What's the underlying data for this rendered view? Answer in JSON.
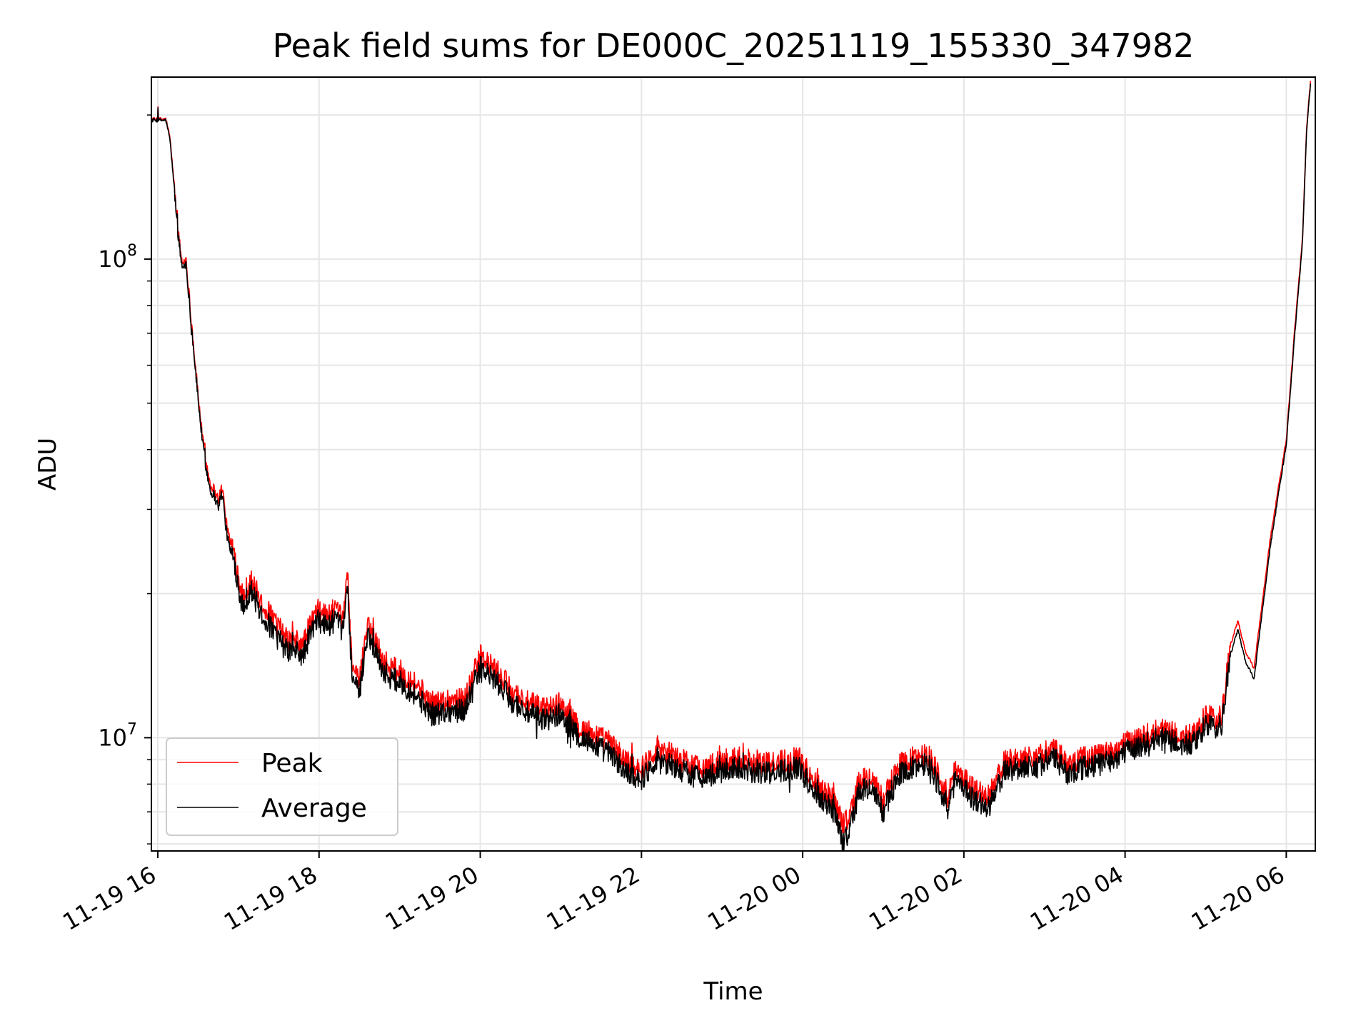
{
  "chart_data": {
    "type": "line",
    "title": "Peak field sums for DE000C_20251119_155330_347982",
    "xlabel": "Time",
    "ylabel": "ADU",
    "yscale": "log",
    "ylim": [
      5800000,
      240000000
    ],
    "xlim_hours": [
      -0.08,
      14.36
    ],
    "grid": true,
    "legend_location": "lower-left",
    "x_tick_labels": [
      "11-19 16",
      "11-19 18",
      "11-19 20",
      "11-19 22",
      "11-20 00",
      "11-20 02",
      "11-20 04",
      "11-20 06"
    ],
    "x_tick_hours": [
      0,
      2,
      4,
      6,
      8,
      10,
      12,
      14
    ],
    "y_tick_major": [
      {
        "value": 10000000,
        "base": "10",
        "exp": "7"
      },
      {
        "value": 100000000,
        "base": "10",
        "exp": "8"
      }
    ],
    "x_unit_note": "hours since 2025-11-19 16:00",
    "series": [
      {
        "name": "Peak",
        "color": "#ff0000",
        "x": [
          -0.1,
          0.03,
          0.1,
          0.15,
          0.2,
          0.25,
          0.3,
          0.35,
          0.4,
          0.45,
          0.5,
          0.55,
          0.6,
          0.65,
          0.7,
          0.75,
          0.8,
          0.85,
          0.9,
          0.95,
          1.0,
          1.05,
          1.1,
          1.15,
          1.2,
          1.3,
          1.4,
          1.5,
          1.6,
          1.7,
          1.8,
          1.9,
          2.0,
          2.1,
          2.2,
          2.3,
          2.35,
          2.4,
          2.45,
          2.5,
          2.6,
          2.7,
          2.8,
          2.9,
          3.0,
          3.2,
          3.4,
          3.6,
          3.8,
          4.0,
          4.2,
          4.4,
          4.6,
          4.8,
          5.0,
          5.2,
          5.4,
          5.6,
          5.8,
          6.0,
          6.2,
          6.4,
          6.6,
          6.8,
          7.0,
          7.2,
          7.4,
          7.6,
          7.8,
          7.95,
          8.1,
          8.3,
          8.42,
          8.5,
          8.6,
          8.7,
          8.85,
          9.0,
          9.2,
          9.4,
          9.55,
          9.7,
          9.8,
          9.9,
          10.1,
          10.3,
          10.5,
          10.7,
          10.9,
          11.1,
          11.3,
          11.5,
          11.7,
          11.9,
          12.1,
          12.3,
          12.5,
          12.7,
          12.9,
          13.0,
          13.1,
          13.2,
          13.3,
          13.4,
          13.5,
          13.6,
          13.7,
          13.8,
          13.9,
          14.0,
          14.1,
          14.2,
          14.25,
          14.3
        ],
        "values": [
          196000000,
          196000000,
          196000000,
          180000000,
          145000000,
          115000000,
          98000000,
          100000000,
          80000000,
          64000000,
          52000000,
          43000000,
          37500000,
          34000000,
          33000000,
          31500000,
          33500000,
          28000000,
          25500000,
          24000000,
          22000000,
          19500000,
          20500000,
          21500000,
          20500000,
          19000000,
          18000000,
          17000000,
          16000000,
          16000000,
          15600000,
          17500000,
          18500000,
          18000000,
          18500000,
          17500000,
          23000000,
          15000000,
          13500000,
          13000000,
          17500000,
          16000000,
          14500000,
          14000000,
          13800000,
          13000000,
          11800000,
          12000000,
          12000000,
          14800000,
          13800000,
          12500000,
          11800000,
          11500000,
          11800000,
          10600000,
          10200000,
          9800000,
          9000000,
          8600000,
          9600000,
          9200000,
          8800000,
          8700000,
          8900000,
          9100000,
          8900000,
          8800000,
          9000000,
          9100000,
          8300000,
          7700000,
          7300000,
          6600000,
          7000000,
          8100000,
          8300000,
          7400000,
          8800000,
          9100000,
          9300000,
          8300000,
          7400000,
          8700000,
          7900000,
          7500000,
          8900000,
          9100000,
          9100000,
          9500000,
          8800000,
          9100000,
          9200000,
          9500000,
          9900000,
          10200000,
          10400000,
          10000000,
          10200000,
          11200000,
          11000000,
          11000000,
          15500000,
          17500000,
          15000000,
          14000000,
          19000000,
          26000000,
          33000000,
          42000000,
          70000000,
          110000000,
          185000000,
          235000000
        ]
      },
      {
        "name": "Average",
        "color": "#000000",
        "x": [
          -0.1,
          0.03,
          0.1,
          0.15,
          0.2,
          0.25,
          0.3,
          0.35,
          0.4,
          0.45,
          0.5,
          0.55,
          0.6,
          0.65,
          0.7,
          0.75,
          0.8,
          0.85,
          0.9,
          0.95,
          1.0,
          1.05,
          1.1,
          1.15,
          1.2,
          1.3,
          1.4,
          1.5,
          1.6,
          1.7,
          1.8,
          1.9,
          2.0,
          2.1,
          2.2,
          2.3,
          2.35,
          2.4,
          2.45,
          2.5,
          2.6,
          2.7,
          2.8,
          2.9,
          3.0,
          3.2,
          3.4,
          3.6,
          3.8,
          4.0,
          4.2,
          4.4,
          4.6,
          4.8,
          5.0,
          5.2,
          5.4,
          5.6,
          5.8,
          6.0,
          6.2,
          6.4,
          6.6,
          6.8,
          7.0,
          7.2,
          7.4,
          7.6,
          7.8,
          7.95,
          8.1,
          8.3,
          8.42,
          8.5,
          8.6,
          8.7,
          8.85,
          9.0,
          9.2,
          9.4,
          9.55,
          9.7,
          9.8,
          9.9,
          10.1,
          10.3,
          10.5,
          10.7,
          10.9,
          11.1,
          11.3,
          11.5,
          11.7,
          11.9,
          12.1,
          12.3,
          12.5,
          12.7,
          12.9,
          13.0,
          13.1,
          13.2,
          13.3,
          13.4,
          13.5,
          13.6,
          13.7,
          13.8,
          13.9,
          14.0,
          14.1,
          14.2,
          14.25,
          14.3
        ],
        "values": [
          195000000,
          195000000,
          195000000,
          178000000,
          143000000,
          113000000,
          96000000,
          98000000,
          78000000,
          63000000,
          51000000,
          42000000,
          36500000,
          33000000,
          32000000,
          30500000,
          32500000,
          27000000,
          24500000,
          23000000,
          21000000,
          18500000,
          19500000,
          20500000,
          19500000,
          18000000,
          17000000,
          16000000,
          15200000,
          15200000,
          14800000,
          16700000,
          17600000,
          17100000,
          17600000,
          16700000,
          21500000,
          14200000,
          12800000,
          12300000,
          16600000,
          15200000,
          13800000,
          13300000,
          13100000,
          12300000,
          11200000,
          11400000,
          11400000,
          14000000,
          13100000,
          11900000,
          11200000,
          10900000,
          11200000,
          10100000,
          9700000,
          9300000,
          8500000,
          8200000,
          9100000,
          8700000,
          8400000,
          8300000,
          8500000,
          8700000,
          8500000,
          8400000,
          8600000,
          8700000,
          7900000,
          7300000,
          6900000,
          6000000,
          6600000,
          7700000,
          7900000,
          7000000,
          8400000,
          8700000,
          8900000,
          7900000,
          7000000,
          8300000,
          7500000,
          7100000,
          8500000,
          8700000,
          8700000,
          9100000,
          8400000,
          8700000,
          8800000,
          9100000,
          9500000,
          9800000,
          10000000,
          9600000,
          9800000,
          10700000,
          10500000,
          10500000,
          14800000,
          16800000,
          14300000,
          13300000,
          18200000,
          25000000,
          32000000,
          41000000,
          68000000,
          108000000,
          182000000,
          232000000
        ]
      }
    ]
  }
}
